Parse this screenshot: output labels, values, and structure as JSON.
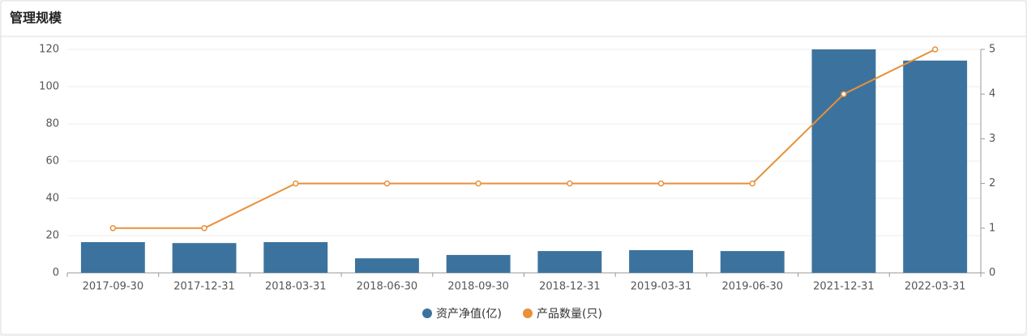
{
  "chart_data": {
    "type": "combo",
    "title": "管理规模",
    "categories": [
      "2017-09-30",
      "2017-12-31",
      "2018-03-31",
      "2018-06-30",
      "2018-09-30",
      "2018-12-31",
      "2019-03-31",
      "2019-06-30",
      "2021-12-31",
      "2022-03-31"
    ],
    "series": [
      {
        "name": "资产净值(亿)",
        "type": "bar",
        "color": "#3c739e",
        "values": [
          16.5,
          16,
          16.5,
          7.8,
          9.6,
          11.7,
          12.2,
          11.7,
          120,
          114
        ]
      },
      {
        "name": "产品数量(只)",
        "type": "line",
        "axis": "y2",
        "color": "#e8903a",
        "values": [
          1,
          1,
          2,
          2,
          2,
          2,
          2,
          2,
          4,
          5
        ]
      }
    ],
    "ylim": [
      0,
      120
    ],
    "yticks": [
      0,
      20,
      40,
      60,
      80,
      100,
      120
    ],
    "y2lim": [
      0,
      5
    ],
    "y2ticks": [
      0,
      1,
      2,
      3,
      4,
      5
    ],
    "grid": true,
    "legend": "bottom"
  }
}
